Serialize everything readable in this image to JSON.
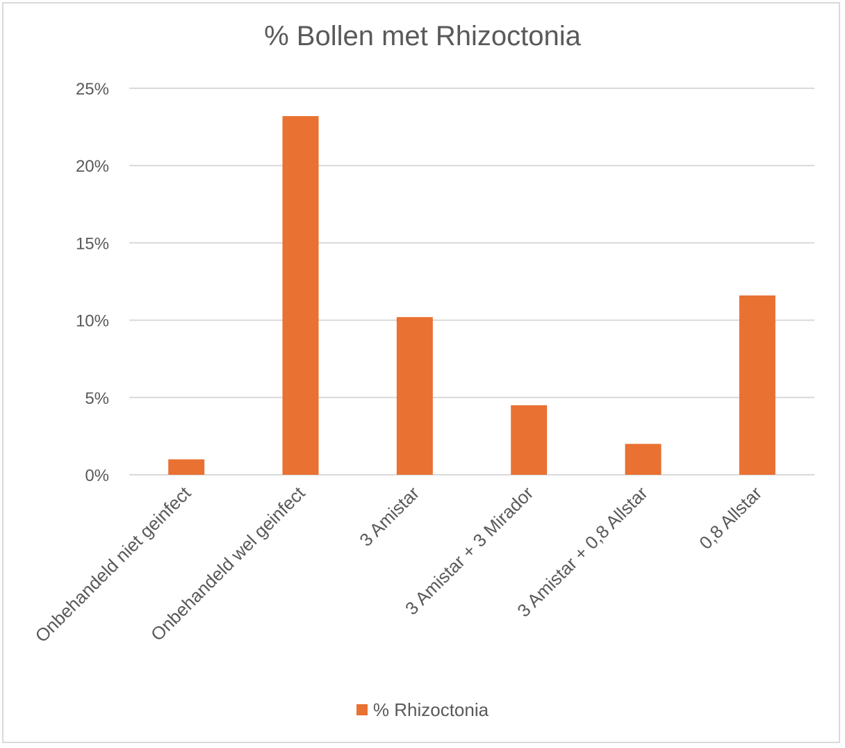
{
  "chart_data": {
    "type": "bar",
    "title": "% Bollen met Rhizoctonia",
    "categories": [
      "Onbehandeld niet geinfect",
      "Onbehandeld wel geinfect",
      "3 Amistar",
      "3 Amistar + 3 Mirador",
      "3 Amistar + 0,8 Allstar",
      "0,8 Allstar"
    ],
    "series": [
      {
        "name": "% Rhizoctonia",
        "values": [
          1.0,
          23.2,
          10.2,
          4.5,
          2.0,
          11.6
        ]
      }
    ],
    "ylim": [
      0,
      25
    ],
    "yticks": [
      "0%",
      "5%",
      "10%",
      "15%",
      "20%",
      "25%"
    ],
    "ytick_values": [
      0,
      5,
      10,
      15,
      20,
      25
    ],
    "grid": true,
    "legend_position": "bottom",
    "bar_color": "#E97132"
  }
}
